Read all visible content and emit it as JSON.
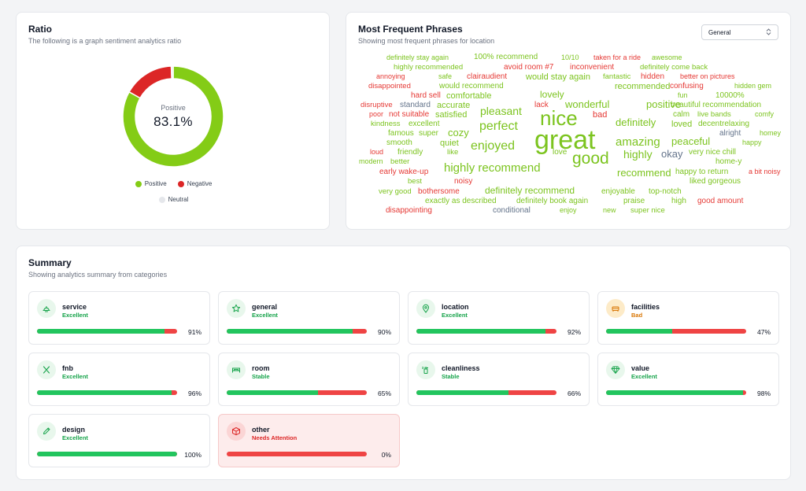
{
  "ratio": {
    "title": "Ratio",
    "subtitle": "The following is a graph sentiment analytics ratio",
    "center_label": "Positive",
    "center_value": "83.1%",
    "segments": [
      {
        "name": "Positive",
        "value": 83.1,
        "color": "#84cc16"
      },
      {
        "name": "Negative",
        "value": 16.3,
        "color": "#dc2626"
      },
      {
        "name": "Neutral",
        "value": 0.6,
        "color": "#e5e7eb"
      }
    ],
    "legend": [
      "Positive",
      "Negative",
      "Neutral"
    ]
  },
  "phrases": {
    "title": "Most Frequent Phrases",
    "subtitle": "Showing most frequent phrases for location",
    "select_value": "General",
    "colors": {
      "positive": "#7cc41f",
      "negative": "#e53935",
      "neutral": "#64748b"
    },
    "words": [
      {
        "t": "definitely stay again",
        "s": 9,
        "c": "positive"
      },
      {
        "t": "100% recommend",
        "s": 10,
        "c": "positive"
      },
      {
        "t": "10/10",
        "s": 9,
        "c": "positive"
      },
      {
        "t": "taken for a ride",
        "s": 9,
        "c": "negative"
      },
      {
        "t": "awesome",
        "s": 9,
        "c": "positive"
      },
      {
        "t": "highly recommended",
        "s": 9.5,
        "c": "positive"
      },
      {
        "t": "avoid room #7",
        "s": 10,
        "c": "negative"
      },
      {
        "t": "inconvenient",
        "s": 10,
        "c": "negative"
      },
      {
        "t": "definitely come back",
        "s": 9.5,
        "c": "positive"
      },
      {
        "t": "annoying",
        "s": 9,
        "c": "negative"
      },
      {
        "t": "safe",
        "s": 9,
        "c": "positive"
      },
      {
        "t": "clairaudient",
        "s": 10,
        "c": "negative"
      },
      {
        "t": "would stay again",
        "s": 11,
        "c": "positive"
      },
      {
        "t": "fantastic",
        "s": 9.5,
        "c": "positive"
      },
      {
        "t": "hidden",
        "s": 10,
        "c": "negative"
      },
      {
        "t": "better on pictures",
        "s": 9,
        "c": "negative"
      },
      {
        "t": "disappointed",
        "s": 9.5,
        "c": "negative"
      },
      {
        "t": "would recommend",
        "s": 10,
        "c": "positive"
      },
      {
        "t": "recommended",
        "s": 11,
        "c": "positive"
      },
      {
        "t": "confusing",
        "s": 10,
        "c": "negative"
      },
      {
        "t": "hidden gem",
        "s": 9,
        "c": "positive"
      },
      {
        "t": "hard sell",
        "s": 10,
        "c": "negative"
      },
      {
        "t": "comfortable",
        "s": 11,
        "c": "positive"
      },
      {
        "t": "lovely",
        "s": 12,
        "c": "positive"
      },
      {
        "t": "fun",
        "s": 9,
        "c": "positive"
      },
      {
        "t": "10000%",
        "s": 10,
        "c": "positive"
      },
      {
        "t": "disruptive",
        "s": 9.5,
        "c": "negative"
      },
      {
        "t": "standard",
        "s": 10,
        "c": "neutral"
      },
      {
        "t": "accurate",
        "s": 11,
        "c": "positive"
      },
      {
        "t": "pleasant",
        "s": 14,
        "c": "positive"
      },
      {
        "t": "lack",
        "s": 10,
        "c": "negative"
      },
      {
        "t": "wonderful",
        "s": 13,
        "c": "positive"
      },
      {
        "t": "positive",
        "s": 13,
        "c": "positive"
      },
      {
        "t": "beautiful recommendation",
        "s": 10,
        "c": "positive"
      },
      {
        "t": "poor",
        "s": 9,
        "c": "negative"
      },
      {
        "t": "not suitable",
        "s": 10,
        "c": "negative"
      },
      {
        "t": "satisfied",
        "s": 11,
        "c": "positive"
      },
      {
        "t": "nice",
        "s": 26,
        "c": "positive"
      },
      {
        "t": "bad",
        "s": 11,
        "c": "negative"
      },
      {
        "t": "calm",
        "s": 10,
        "c": "positive"
      },
      {
        "t": "live bands",
        "s": 9.5,
        "c": "positive"
      },
      {
        "t": "comfy",
        "s": 9,
        "c": "positive"
      },
      {
        "t": "kindness",
        "s": 9.5,
        "c": "positive"
      },
      {
        "t": "excellent",
        "s": 10,
        "c": "positive"
      },
      {
        "t": "perfect",
        "s": 16,
        "c": "positive"
      },
      {
        "t": "definitely",
        "s": 13,
        "c": "positive"
      },
      {
        "t": "loved",
        "s": 11,
        "c": "positive"
      },
      {
        "t": "decentrelaxing",
        "s": 10,
        "c": "positive"
      },
      {
        "t": "cozy",
        "s": 13,
        "c": "positive"
      },
      {
        "t": "alright",
        "s": 10,
        "c": "neutral"
      },
      {
        "t": "famous",
        "s": 10,
        "c": "positive"
      },
      {
        "t": "super",
        "s": 10,
        "c": "positive"
      },
      {
        "t": "great",
        "s": 34,
        "c": "positive"
      },
      {
        "t": "amazing",
        "s": 15,
        "c": "positive"
      },
      {
        "t": "peaceful",
        "s": 13,
        "c": "positive"
      },
      {
        "t": "homey",
        "s": 9,
        "c": "positive"
      },
      {
        "t": "smooth",
        "s": 10,
        "c": "positive"
      },
      {
        "t": "quiet",
        "s": 11,
        "c": "positive"
      },
      {
        "t": "enjoyed",
        "s": 16,
        "c": "positive"
      },
      {
        "t": "happy",
        "s": 9,
        "c": "positive"
      },
      {
        "t": "loud",
        "s": 9,
        "c": "negative"
      },
      {
        "t": "friendly",
        "s": 10,
        "c": "positive"
      },
      {
        "t": "like",
        "s": 9.5,
        "c": "positive"
      },
      {
        "t": "love",
        "s": 10,
        "c": "positive"
      },
      {
        "t": "good",
        "s": 21,
        "c": "positive"
      },
      {
        "t": "highly",
        "s": 14,
        "c": "positive"
      },
      {
        "t": "okay",
        "s": 13,
        "c": "neutral"
      },
      {
        "t": "very nice chill",
        "s": 10,
        "c": "positive"
      },
      {
        "t": "modern",
        "s": 9,
        "c": "positive"
      },
      {
        "t": "better",
        "s": 9.5,
        "c": "positive"
      },
      {
        "t": "highly recommend",
        "s": 15,
        "c": "positive"
      },
      {
        "t": "home-y",
        "s": 10,
        "c": "positive"
      },
      {
        "t": "early wake-up",
        "s": 10,
        "c": "negative"
      },
      {
        "t": "recommend",
        "s": 13,
        "c": "positive"
      },
      {
        "t": "happy to return",
        "s": 10,
        "c": "positive"
      },
      {
        "t": "a bit noisy",
        "s": 9,
        "c": "negative"
      },
      {
        "t": "best",
        "s": 9.5,
        "c": "positive"
      },
      {
        "t": "noisy",
        "s": 10,
        "c": "negative"
      },
      {
        "t": "liked gorgeous",
        "s": 10,
        "c": "positive"
      },
      {
        "t": "very good",
        "s": 9.5,
        "c": "positive"
      },
      {
        "t": "bothersome",
        "s": 10,
        "c": "negative"
      },
      {
        "t": "definitely recommend",
        "s": 12,
        "c": "positive"
      },
      {
        "t": "enjoyable",
        "s": 10,
        "c": "positive"
      },
      {
        "t": "top-notch",
        "s": 10,
        "c": "positive"
      },
      {
        "t": "exactly as described",
        "s": 10,
        "c": "positive"
      },
      {
        "t": "definitely book again",
        "s": 10,
        "c": "positive"
      },
      {
        "t": "praise",
        "s": 10,
        "c": "positive"
      },
      {
        "t": "high",
        "s": 10,
        "c": "positive"
      },
      {
        "t": "good amount",
        "s": 10,
        "c": "negative"
      },
      {
        "t": "disappointing",
        "s": 10,
        "c": "negative"
      },
      {
        "t": "conditional",
        "s": 10,
        "c": "neutral"
      },
      {
        "t": "enjoy",
        "s": 9,
        "c": "positive"
      },
      {
        "t": "new",
        "s": 9,
        "c": "positive"
      },
      {
        "t": "super nice",
        "s": 9.5,
        "c": "positive"
      }
    ]
  },
  "summary": {
    "title": "Summary",
    "subtitle": "Showing analytics summary from categories",
    "status_colors": {
      "Excellent": "#16a34a",
      "Stable": "#16a34a",
      "Bad": "#d97706",
      "Needs Attention": "#dc2626"
    },
    "categories": [
      {
        "name": "service",
        "status": "Excellent",
        "positive": 91,
        "pct": "91%",
        "icon": "bell-icon"
      },
      {
        "name": "general",
        "status": "Excellent",
        "positive": 90,
        "pct": "90%",
        "icon": "star-icon"
      },
      {
        "name": "location",
        "status": "Excellent",
        "positive": 92,
        "pct": "92%",
        "icon": "map-pin-icon"
      },
      {
        "name": "facilities",
        "status": "Bad",
        "positive": 47,
        "pct": "47%",
        "icon": "sofa-icon"
      },
      {
        "name": "fnb",
        "status": "Excellent",
        "positive": 96,
        "pct": "96%",
        "icon": "utensils-icon"
      },
      {
        "name": "room",
        "status": "Stable",
        "positive": 65,
        "pct": "65%",
        "icon": "bed-icon"
      },
      {
        "name": "cleanliness",
        "status": "Stable",
        "positive": 66,
        "pct": "66%",
        "icon": "spray-bottle-icon"
      },
      {
        "name": "value",
        "status": "Excellent",
        "positive": 98,
        "pct": "98%",
        "icon": "diamond-icon"
      },
      {
        "name": "design",
        "status": "Excellent",
        "positive": 100,
        "pct": "100%",
        "icon": "pencil-icon"
      },
      {
        "name": "other",
        "status": "Needs Attention",
        "positive": 0,
        "pct": "0%",
        "icon": "box-icon"
      }
    ]
  }
}
